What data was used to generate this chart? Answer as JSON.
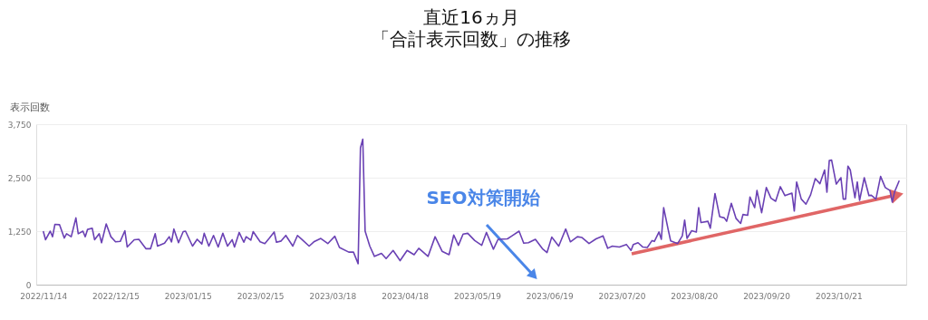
{
  "chart_data": {
    "type": "line",
    "title": "直近16ヵ月",
    "subtitle": "「合計表示回数」の推移",
    "ylabel": "表示回数",
    "annotations": [
      "SEO対策開始"
    ],
    "x": [
      "2022-11-14",
      "2022-11-15",
      "2022-11-17",
      "2022-11-18",
      "2022-11-19",
      "2022-11-21",
      "2022-11-23",
      "2022-11-24",
      "2022-11-26",
      "2022-11-28",
      "2022-11-29",
      "2022-12-01",
      "2022-12-02",
      "2022-12-03",
      "2022-12-05",
      "2022-12-06",
      "2022-12-08",
      "2022-12-09",
      "2022-12-11",
      "2022-12-13",
      "2022-12-15",
      "2022-12-17",
      "2022-12-19",
      "2022-12-20",
      "2022-12-23",
      "2022-12-25",
      "2022-12-28",
      "2022-12-30",
      "2023-01-01",
      "2023-01-02",
      "2023-01-05",
      "2023-01-07",
      "2023-01-08",
      "2023-01-09",
      "2023-01-11",
      "2023-01-13",
      "2023-01-14",
      "2023-01-17",
      "2023-01-19",
      "2023-01-21",
      "2023-01-22",
      "2023-01-24",
      "2023-01-26",
      "2023-01-28",
      "2023-01-30",
      "2023-02-01",
      "2023-02-03",
      "2023-02-04",
      "2023-02-06",
      "2023-02-08",
      "2023-02-09",
      "2023-02-11",
      "2023-02-12",
      "2023-02-15",
      "2023-02-17",
      "2023-02-19",
      "2023-02-21",
      "2023-02-22",
      "2023-02-24",
      "2023-02-26",
      "2023-03-01",
      "2023-03-03",
      "2023-03-05",
      "2023-03-08",
      "2023-03-10",
      "2023-03-13",
      "2023-03-16",
      "2023-03-19",
      "2023-03-21",
      "2023-03-25",
      "2023-03-27",
      "2023-03-29",
      "2023-03-30",
      "2023-03-31",
      "2023-04-01",
      "2023-04-03",
      "2023-04-05",
      "2023-04-08",
      "2023-04-10",
      "2023-04-13",
      "2023-04-16",
      "2023-04-19",
      "2023-04-22",
      "2023-04-24",
      "2023-04-28",
      "2023-05-01",
      "2023-05-04",
      "2023-05-07",
      "2023-05-09",
      "2023-05-11",
      "2023-05-13",
      "2023-05-15",
      "2023-05-18",
      "2023-05-21",
      "2023-05-23",
      "2023-05-26",
      "2023-05-28",
      "2023-06-01",
      "2023-06-03",
      "2023-06-06",
      "2023-06-08",
      "2023-06-10",
      "2023-06-13",
      "2023-06-16",
      "2023-06-18",
      "2023-06-20",
      "2023-06-23",
      "2023-06-26",
      "2023-06-28",
      "2023-07-01",
      "2023-07-03",
      "2023-07-06",
      "2023-07-09",
      "2023-07-12",
      "2023-07-14",
      "2023-07-16",
      "2023-07-19",
      "2023-07-22",
      "2023-07-24",
      "2023-07-25",
      "2023-07-27",
      "2023-07-29",
      "2023-07-31",
      "2023-08-02",
      "2023-08-03",
      "2023-08-05",
      "2023-08-06",
      "2023-08-07",
      "2023-08-09",
      "2023-08-10",
      "2023-08-13",
      "2023-08-15",
      "2023-08-16",
      "2023-08-17",
      "2023-08-19",
      "2023-08-21",
      "2023-08-22",
      "2023-08-23",
      "2023-08-26",
      "2023-08-27",
      "2023-08-29",
      "2023-08-31",
      "2023-09-02",
      "2023-09-03",
      "2023-09-05",
      "2023-09-07",
      "2023-09-09",
      "2023-09-10",
      "2023-09-12",
      "2023-09-13",
      "2023-09-15",
      "2023-09-16",
      "2023-09-18",
      "2023-09-20",
      "2023-09-22",
      "2023-09-24",
      "2023-09-26",
      "2023-09-28",
      "2023-10-01",
      "2023-10-02",
      "2023-10-03",
      "2023-10-05",
      "2023-10-07",
      "2023-10-09",
      "2023-10-11",
      "2023-10-13",
      "2023-10-15",
      "2023-10-16",
      "2023-10-17",
      "2023-10-18",
      "2023-10-20",
      "2023-10-22",
      "2023-10-23",
      "2023-10-24",
      "2023-10-25",
      "2023-10-26",
      "2023-10-28",
      "2023-10-29",
      "2023-10-30",
      "2023-11-01",
      "2023-11-03",
      "2023-11-04",
      "2023-11-06",
      "2023-11-08",
      "2023-11-10",
      "2023-11-12",
      "2023-11-13",
      "2023-11-14",
      "2023-11-16"
    ],
    "series": [
      {
        "color": "#6a41b4",
        "values": [
          1250,
          1050,
          1250,
          1120,
          1410,
          1400,
          1090,
          1190,
          1120,
          1560,
          1190,
          1250,
          1120,
          1290,
          1320,
          1050,
          1190,
          980,
          1420,
          1120,
          1000,
          1010,
          1260,
          880,
          1050,
          1060,
          840,
          840,
          1190,
          900,
          970,
          1120,
          1000,
          1300,
          980,
          1240,
          1250,
          900,
          1060,
          950,
          1200,
          900,
          1150,
          880,
          1200,
          900,
          1050,
          880,
          1220,
          990,
          1120,
          1040,
          1240,
          1000,
          960,
          1090,
          1230,
          990,
          1020,
          1150,
          900,
          1150,
          1050,
          900,
          1000,
          1080,
          960,
          1130,
          870,
          760,
          760,
          490,
          3200,
          3400,
          1250,
          900,
          660,
          730,
          610,
          800,
          560,
          800,
          700,
          850,
          660,
          1120,
          780,
          700,
          1160,
          920,
          1180,
          1200,
          1030,
          920,
          1220,
          830,
          1060,
          1070,
          1140,
          1250,
          970,
          980,
          1060,
          840,
          750,
          1110,
          900,
          1300,
          1000,
          1120,
          1100,
          960,
          1070,
          1140,
          850,
          900,
          880,
          940,
          800,
          940,
          980,
          880,
          870,
          1030,
          1010,
          1230,
          1060,
          1800,
          1270,
          1020,
          960,
          1140,
          1510,
          1080,
          1260,
          1230,
          1800,
          1450,
          1480,
          1320,
          2130,
          1590,
          1560,
          1480,
          1900,
          1550,
          1430,
          1640,
          1620,
          2050,
          1800,
          2200,
          1680,
          2270,
          2020,
          1950,
          2290,
          2080,
          2140,
          1720,
          2400,
          2000,
          1880,
          2100,
          2480,
          2360,
          2680,
          2160,
          2900,
          2910,
          2350,
          2500,
          2000,
          2000,
          2770,
          2680,
          2030,
          2400,
          1970,
          2500,
          2080,
          2090,
          2000,
          2530,
          2270,
          2200,
          1930,
          2170,
          2430
        ]
      }
    ],
    "xlim": [
      "2022-11-11",
      "2023-11-19"
    ],
    "xticks": [
      {
        "value": "2022-11-14",
        "label": "2022/11/14"
      },
      {
        "value": "2022-12-15",
        "label": "2022/12/15"
      },
      {
        "value": "2023-01-15",
        "label": "2023/01/15"
      },
      {
        "value": "2023-02-15",
        "label": "2023/02/15"
      },
      {
        "value": "2023-03-18",
        "label": "2023/03/18"
      },
      {
        "value": "2023-04-18",
        "label": "2023/04/18"
      },
      {
        "value": "2023-05-19",
        "label": "2023/05/19"
      },
      {
        "value": "2023-06-19",
        "label": "2023/06/19"
      },
      {
        "value": "2023-07-20",
        "label": "2023/07/20"
      },
      {
        "value": "2023-08-20",
        "label": "2023/08/20"
      },
      {
        "value": "2023-09-20",
        "label": "2023/09/20"
      },
      {
        "value": "2023-10-21",
        "label": "2023/10/21"
      }
    ],
    "ylim": [
      0,
      3750
    ],
    "yticks": [
      0,
      {
        "value": 1250,
        "label": "1,250"
      },
      {
        "value": 2500,
        "label": "2,500"
      },
      {
        "value": 3750,
        "label": "3,750"
      }
    ],
    "grid": "y",
    "marker": "none",
    "line_style": "solid"
  }
}
